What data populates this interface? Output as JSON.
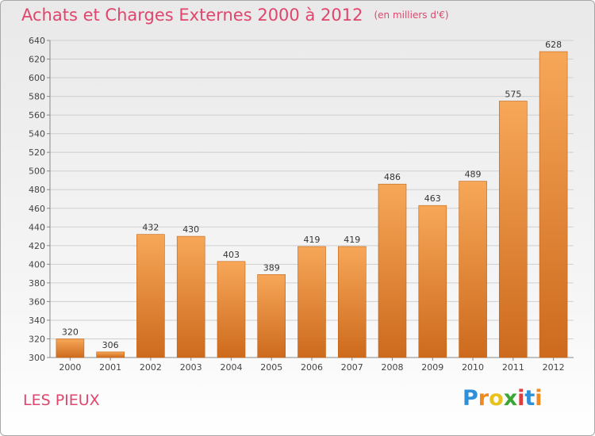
{
  "header": {
    "title": "Achats et Charges Externes 2000 à 2012",
    "unit": "(en milliers d'€)"
  },
  "footer": {
    "place": "LES PIEUX",
    "logo": {
      "letters": [
        "P",
        "r",
        "o",
        "x",
        "i",
        "t",
        "i"
      ],
      "colors": [
        "#2f8fd8",
        "#f08a1c",
        "#e8c21a",
        "#3aa635",
        "#e03c3c",
        "#2f8fd8",
        "#f08a1c"
      ]
    }
  },
  "colors": {
    "bar_light": "#f7a758",
    "bar_dark": "#cd6a1d",
    "title": "#e0456d",
    "grid": "#cfcfcf"
  },
  "chart_data": {
    "type": "bar",
    "title": "Achats et Charges Externes 2000 à 2012",
    "subtitle": "(en milliers d'€)",
    "categories": [
      "2000",
      "2001",
      "2002",
      "2003",
      "2004",
      "2005",
      "2006",
      "2007",
      "2008",
      "2009",
      "2010",
      "2011",
      "2012"
    ],
    "values": [
      320,
      306,
      432,
      430,
      403,
      389,
      419,
      419,
      486,
      463,
      489,
      575,
      628
    ],
    "xlabel": "",
    "ylabel": "",
    "ylim": [
      300,
      640
    ],
    "ytick_step": 20,
    "grid": true,
    "legend": "none"
  }
}
